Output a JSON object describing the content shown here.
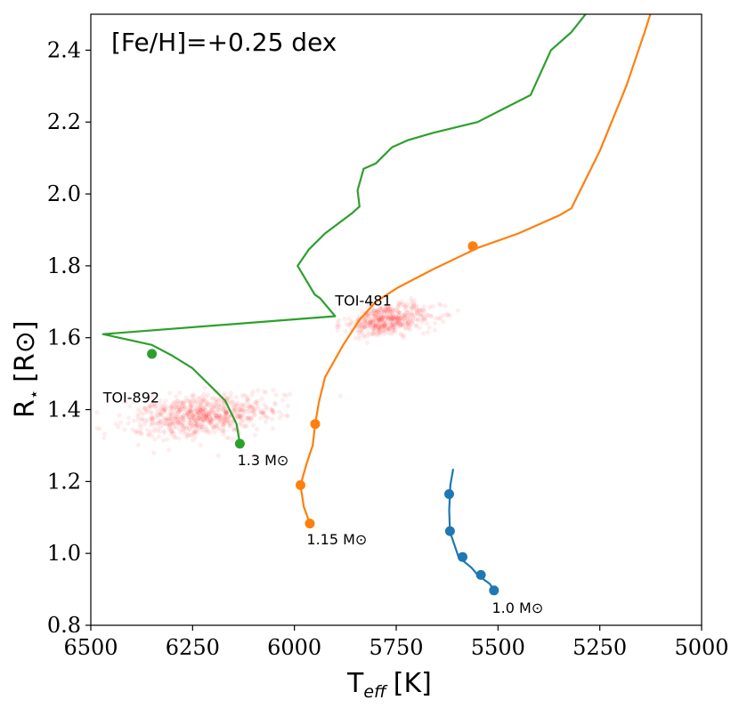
{
  "chart_data": {
    "type": "line",
    "title": "[Fe/H]=+0.25 dex",
    "xlabel_main": "T",
    "xlabel_sub": "eff",
    "xlabel_unit": "[K]",
    "ylabel_main": "R",
    "ylabel_sub": "⋆",
    "ylabel_unit": "[R⊙]",
    "xlim": [
      6500,
      5000
    ],
    "ylim": [
      0.8,
      2.5
    ],
    "x_ticks": [
      6500,
      6250,
      6000,
      5750,
      5500,
      5250,
      5000
    ],
    "y_ticks": [
      0.8,
      1.0,
      1.2,
      1.4,
      1.6,
      1.8,
      2.0,
      2.2,
      2.4
    ],
    "series": [
      {
        "name": "1.0 M⊙",
        "color": "#1f77b4",
        "line": [
          [
            5610,
            1.235
          ],
          [
            5617,
            1.19
          ],
          [
            5620,
            1.12
          ],
          [
            5618,
            1.06
          ],
          [
            5597,
            0.99
          ],
          [
            5565,
            0.96
          ],
          [
            5550,
            0.94
          ],
          [
            5520,
            0.915
          ],
          [
            5510,
            0.895
          ]
        ],
        "markers": [
          [
            5620,
            1.165
          ],
          [
            5618,
            1.062
          ],
          [
            5587,
            0.99
          ],
          [
            5542,
            0.94
          ],
          [
            5510,
            0.897
          ]
        ]
      },
      {
        "name": "1.15 M⊙",
        "color": "#ff7f0e",
        "line": [
          [
            5962,
            1.083
          ],
          [
            5977,
            1.13
          ],
          [
            5985,
            1.19
          ],
          [
            5970,
            1.25
          ],
          [
            5955,
            1.3
          ],
          [
            5949,
            1.36
          ],
          [
            5940,
            1.42
          ],
          [
            5925,
            1.49
          ],
          [
            5880,
            1.58
          ],
          [
            5840,
            1.65
          ],
          [
            5800,
            1.7
          ],
          [
            5745,
            1.74
          ],
          [
            5660,
            1.79
          ],
          [
            5550,
            1.85
          ],
          [
            5450,
            1.89
          ],
          [
            5350,
            1.94
          ],
          [
            5320,
            1.96
          ],
          [
            5250,
            2.12
          ],
          [
            5185,
            2.3
          ],
          [
            5140,
            2.45
          ],
          [
            5126,
            2.5
          ]
        ],
        "markers": [
          [
            5962,
            1.083
          ],
          [
            5985,
            1.19
          ],
          [
            5949,
            1.36
          ],
          [
            5562,
            1.855
          ]
        ]
      },
      {
        "name": "1.3 M⊙",
        "color": "#2ca02c",
        "line": [
          [
            6134,
            1.305
          ],
          [
            6142,
            1.36
          ],
          [
            6170,
            1.425
          ],
          [
            6210,
            1.47
          ],
          [
            6250,
            1.515
          ],
          [
            6300,
            1.55
          ],
          [
            6350,
            1.58
          ],
          [
            6470,
            1.61
          ],
          [
            5900,
            1.66
          ],
          [
            5937,
            1.71
          ],
          [
            5950,
            1.72
          ],
          [
            5992,
            1.8
          ],
          [
            5965,
            1.845
          ],
          [
            5925,
            1.89
          ],
          [
            5860,
            1.945
          ],
          [
            5840,
            1.965
          ],
          [
            5845,
            2.01
          ],
          [
            5830,
            2.07
          ],
          [
            5800,
            2.085
          ],
          [
            5760,
            2.13
          ],
          [
            5720,
            2.15
          ],
          [
            5660,
            2.17
          ],
          [
            5550,
            2.2
          ],
          [
            5490,
            2.235
          ],
          [
            5420,
            2.275
          ],
          [
            5370,
            2.4
          ],
          [
            5320,
            2.45
          ],
          [
            5285,
            2.5
          ]
        ],
        "markers": [
          [
            6134,
            1.305
          ],
          [
            6350,
            1.555
          ]
        ]
      }
    ],
    "scatter_clouds": [
      {
        "name": "TOI-892",
        "center_x": 6230,
        "center_y": 1.383,
        "spread_x": 85,
        "spread_y": 0.03,
        "count": 700,
        "color": "#ff0000"
      },
      {
        "name": "TOI-481",
        "center_x": 5770,
        "center_y": 1.65,
        "spread_x": 55,
        "spread_y": 0.022,
        "count": 450,
        "color": "#ff0000"
      }
    ],
    "annotations": [
      {
        "text": "TOI-892",
        "x": 6470,
        "y": 1.42
      },
      {
        "text": "TOI-481",
        "x": 5900,
        "y": 1.69
      },
      {
        "text": "1.3 M⊙",
        "x": 6140,
        "y": 1.245
      },
      {
        "text": "1.15 M⊙",
        "x": 5970,
        "y": 1.025
      },
      {
        "text": "1.0 M⊙",
        "x": 5515,
        "y": 0.835
      }
    ]
  }
}
